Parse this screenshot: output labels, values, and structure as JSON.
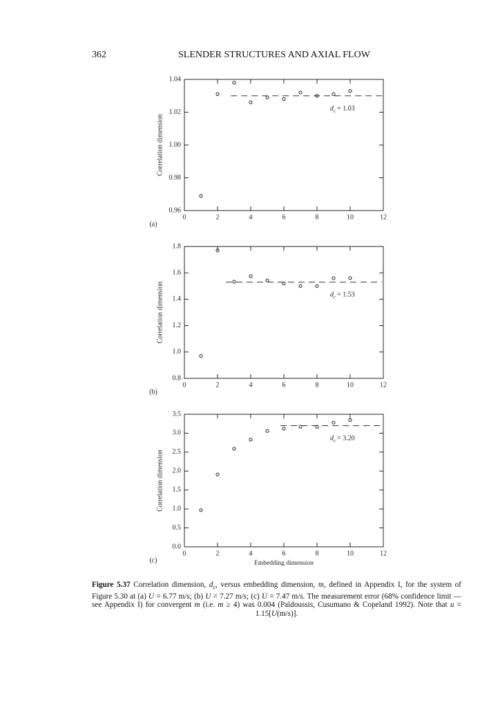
{
  "header": {
    "page_number": "362",
    "title": "SLENDER STRUCTURES AND AXIAL FLOW"
  },
  "chart_data": [
    {
      "type": "scatter",
      "panel": "(a)",
      "ylabel": "Correlation dimension",
      "x": [
        1,
        2,
        3,
        4,
        5,
        6,
        7,
        8,
        9,
        10
      ],
      "values": [
        0.969,
        1.031,
        1.038,
        1.026,
        1.029,
        1.028,
        1.032,
        1.03,
        1.031,
        1.033
      ],
      "xlim": [
        0,
        12
      ],
      "xticks": [
        0,
        2,
        4,
        6,
        8,
        10,
        12
      ],
      "ylim": [
        0.96,
        1.04
      ],
      "yticks": [
        0.96,
        0.98,
        {
          "value": 1,
          "label": "1.00"
        },
        1.02,
        1.04
      ],
      "reference_line": {
        "value": 1.03,
        "x_start": 2.8,
        "symbol": "d",
        "subscript": "c",
        "label": "= 1.03"
      }
    },
    {
      "type": "scatter",
      "panel": "(b)",
      "ylabel": "Correlation dimension",
      "x": [
        1,
        2,
        3,
        4,
        5,
        6,
        7,
        8,
        9,
        10
      ],
      "values": [
        0.97,
        1.77,
        1.533,
        1.575,
        1.543,
        1.52,
        1.5,
        1.5,
        1.56,
        1.56
      ],
      "xlim": [
        0,
        12
      ],
      "xticks": [
        0,
        2,
        4,
        6,
        8,
        10,
        12
      ],
      "ylim": [
        0.8,
        1.8
      ],
      "yticks": [
        0.8,
        {
          "value": 1,
          "label": "1.0"
        },
        1.2,
        1.4,
        1.6,
        1.8
      ],
      "reference_line": {
        "value": 1.53,
        "x_start": 2.5,
        "symbol": "d",
        "subscript": "c",
        "label": "= 1.53"
      }
    },
    {
      "type": "scatter",
      "panel": "(c)",
      "ylabel": "Correlation dimension",
      "xlabel": "Embedding dimension",
      "x": [
        1,
        2,
        3,
        4,
        5,
        6,
        7,
        8,
        9,
        10
      ],
      "values": [
        0.97,
        1.91,
        2.59,
        2.83,
        3.06,
        3.12,
        3.17,
        3.17,
        3.28,
        3.35
      ],
      "xlim": [
        0,
        12
      ],
      "xticks": [
        0,
        2,
        4,
        6,
        8,
        10,
        12
      ],
      "ylim": [
        0,
        3.5
      ],
      "yticks": [
        {
          "value": 0,
          "label": "0.0"
        },
        0.5,
        {
          "value": 1,
          "label": "1.0"
        },
        1.5,
        {
          "value": 2,
          "label": "2.0"
        },
        2.5,
        {
          "value": 3,
          "label": "3.0"
        },
        3.5
      ],
      "reference_line": {
        "value": 3.2,
        "x_start": 5.8,
        "symbol": "d",
        "subscript": "c",
        "label": "= 3.20"
      }
    }
  ],
  "caption": {
    "label": "Figure 5.37",
    "runs": [
      {
        "text": " Correlation dimension, "
      },
      {
        "text": "d",
        "style": "i"
      },
      {
        "text": "c",
        "style": "sub"
      },
      {
        "text": ", versus embedding dimension, "
      },
      {
        "text": "m",
        "style": "i"
      },
      {
        "text": ", defined in Appendix I, for the system of Figure 5.30 at (a) "
      },
      {
        "text": "U",
        "style": "i"
      },
      {
        "text": " = 6.77 m/s; (b) "
      },
      {
        "text": "U",
        "style": "i"
      },
      {
        "text": " = 7.27 m/s; (c) "
      },
      {
        "text": "U",
        "style": "i"
      },
      {
        "text": " = 7.47 m/s. The measurement error (68% confidence limit — see Appendix I) for convergent "
      },
      {
        "text": "m",
        "style": "i"
      },
      {
        "text": " (i.e. "
      },
      {
        "text": "m",
        "style": "i"
      },
      {
        "text": " ≥ 4) was 0.004 (Païdoussis, Cusumano & Copeland 1992). Note that "
      },
      {
        "text": "u",
        "style": "i"
      },
      {
        "text": " = 1.15["
      },
      {
        "text": "U",
        "style": "i"
      },
      {
        "text": "(m/s)]."
      }
    ]
  }
}
